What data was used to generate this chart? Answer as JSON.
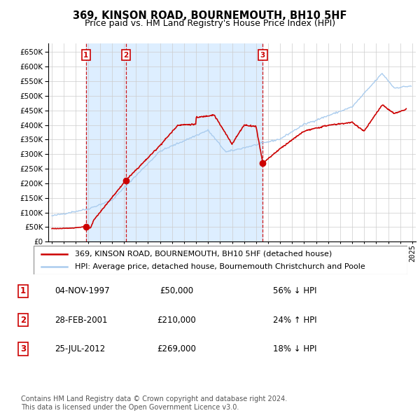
{
  "title": "369, KINSON ROAD, BOURNEMOUTH, BH10 5HF",
  "subtitle": "Price paid vs. HM Land Registry's House Price Index (HPI)",
  "yticks": [
    0,
    50000,
    100000,
    150000,
    200000,
    250000,
    300000,
    350000,
    400000,
    450000,
    500000,
    550000,
    600000,
    650000
  ],
  "xlim_start": 1994.7,
  "xlim_end": 2025.3,
  "ylim": [
    0,
    680000
  ],
  "sale_dates": [
    1997.84,
    2001.16,
    2012.56
  ],
  "sale_prices": [
    50000,
    210000,
    269000
  ],
  "sale_labels": [
    "1",
    "2",
    "3"
  ],
  "sale_color": "#cc0000",
  "hpi_color": "#aaccee",
  "hpi_fill_color": "#ddeeff",
  "legend_sale": "369, KINSON ROAD, BOURNEMOUTH, BH10 5HF (detached house)",
  "legend_hpi": "HPI: Average price, detached house, Bournemouth Christchurch and Poole",
  "table_rows": [
    [
      "1",
      "04-NOV-1997",
      "£50,000",
      "56% ↓ HPI"
    ],
    [
      "2",
      "28-FEB-2001",
      "£210,000",
      "24% ↑ HPI"
    ],
    [
      "3",
      "25-JUL-2012",
      "£269,000",
      "18% ↓ HPI"
    ]
  ],
  "footnote": "Contains HM Land Registry data © Crown copyright and database right 2024.\nThis data is licensed under the Open Government Licence v3.0.",
  "background_color": "#ffffff",
  "grid_color": "#cccccc",
  "title_fontsize": 10.5,
  "subtitle_fontsize": 9,
  "tick_fontsize": 7.5,
  "legend_fontsize": 8,
  "table_fontsize": 8.5,
  "footnote_fontsize": 7
}
